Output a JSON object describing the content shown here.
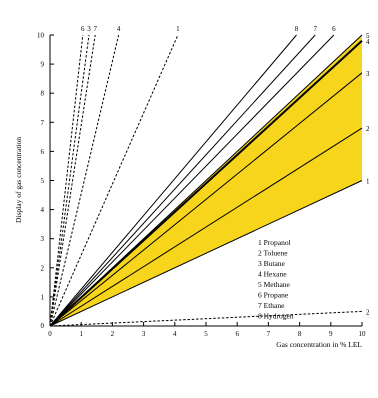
{
  "chart_data": {
    "type": "line",
    "title": "",
    "xlabel": "Gas concentration in % LEL",
    "ylabel": "Display of gas concentration",
    "xlim": [
      0,
      10
    ],
    "ylim": [
      0,
      10
    ],
    "x_ticks": [
      "0",
      "1",
      "2",
      "3",
      "4",
      "5",
      "6",
      "7",
      "8",
      "9",
      "10"
    ],
    "y_ticks": [
      "0",
      "1",
      "2",
      "3",
      "4",
      "5",
      "6",
      "7",
      "8",
      "9",
      "10"
    ],
    "band": {
      "color": "#f7d51d",
      "from_series": "1",
      "to_series": "5"
    },
    "legend": {
      "placement": "bottom-right",
      "entries": [
        "1 Propanol",
        "2 Toluene",
        "3 Butane",
        "4 Hexane",
        "5 Methane",
        "6 Propane",
        "7 Ethane",
        "8 Hydrogen"
      ]
    },
    "series": [
      {
        "name": "1",
        "style": "solid",
        "x": [
          0,
          10
        ],
        "y": [
          0,
          5.0
        ]
      },
      {
        "name": "2",
        "style": "solid",
        "x": [
          0,
          10
        ],
        "y": [
          0,
          6.8
        ]
      },
      {
        "name": "3",
        "style": "solid",
        "x": [
          0,
          10
        ],
        "y": [
          0,
          8.7
        ]
      },
      {
        "name": "4",
        "style": "solid-bold",
        "x": [
          0,
          10
        ],
        "y": [
          0,
          9.8
        ]
      },
      {
        "name": "5",
        "style": "solid",
        "x": [
          0,
          10
        ],
        "y": [
          0,
          10
        ]
      },
      {
        "name": "6",
        "style": "solid",
        "x": [
          0,
          9.1
        ],
        "y": [
          0,
          10
        ]
      },
      {
        "name": "7",
        "style": "solid",
        "x": [
          0,
          8.5
        ],
        "y": [
          0,
          10
        ]
      },
      {
        "name": "8",
        "style": "solid",
        "x": [
          0,
          7.9
        ],
        "y": [
          0,
          10
        ]
      },
      {
        "name": "1",
        "style": "dashed",
        "x": [
          0,
          4.1
        ],
        "y": [
          0,
          10
        ]
      },
      {
        "name": "4",
        "style": "dashed",
        "x": [
          0,
          2.2
        ],
        "y": [
          0,
          10
        ]
      },
      {
        "name": "7",
        "style": "dashed",
        "x": [
          0,
          1.45
        ],
        "y": [
          0,
          10
        ]
      },
      {
        "name": "3",
        "style": "dashed",
        "x": [
          0,
          1.25
        ],
        "y": [
          0,
          10
        ]
      },
      {
        "name": "6",
        "style": "dashed",
        "x": [
          0,
          1.05
        ],
        "y": [
          0,
          10
        ]
      },
      {
        "name": "2",
        "style": "dashed",
        "x": [
          0,
          10
        ],
        "y": [
          0,
          0.5
        ]
      }
    ]
  }
}
